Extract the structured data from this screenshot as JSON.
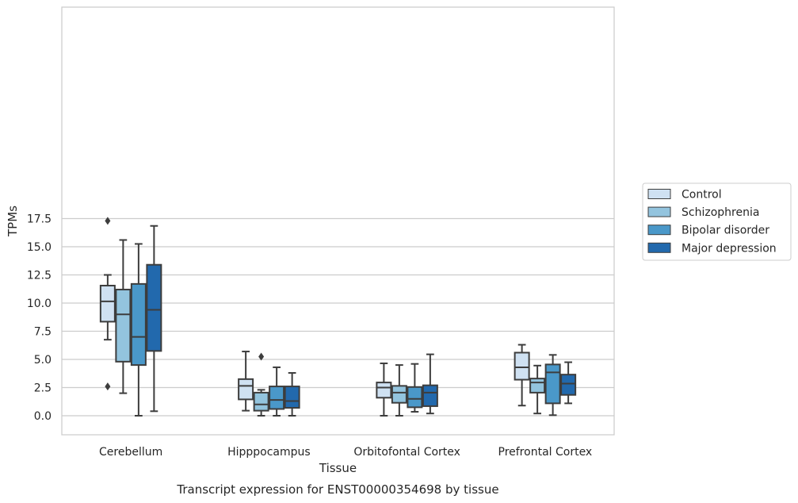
{
  "chart_data": {
    "type": "box",
    "title": "",
    "caption": "Transcript expression for ENST00000354698 by tissue",
    "xlabel": "Tissue",
    "ylabel": "TPMs",
    "ylim": [
      -0.8,
      18.2
    ],
    "yticks": [
      "0.0",
      "2.5",
      "5.0",
      "7.5",
      "10.0",
      "12.5",
      "15.0",
      "17.5"
    ],
    "ytick_values": [
      0,
      2.5,
      5,
      7.5,
      10,
      12.5,
      15,
      17.5
    ],
    "grid": "horizontal",
    "legend_position": "right",
    "categories": [
      "Cerebellum",
      "Hipppocampus",
      "Orbitofontal Cortex",
      "Prefrontal Cortex"
    ],
    "series": [
      {
        "name": "Control",
        "color": "#cfe1f2",
        "boxes": [
          {
            "q1": 8.35,
            "median": 10.15,
            "q3": 11.55,
            "whisker_low": 6.75,
            "whisker_high": 12.5,
            "outliers": [
              17.3,
              2.6
            ]
          },
          {
            "q1": 1.45,
            "median": 2.65,
            "q3": 3.25,
            "whisker_low": 0.45,
            "whisker_high": 5.7,
            "outliers": []
          },
          {
            "q1": 1.6,
            "median": 2.5,
            "q3": 2.95,
            "whisker_low": 0.0,
            "whisker_high": 4.65,
            "outliers": []
          },
          {
            "q1": 3.2,
            "median": 4.3,
            "q3": 5.6,
            "whisker_low": 0.9,
            "whisker_high": 6.3,
            "outliers": []
          }
        ]
      },
      {
        "name": "Schizophrenia",
        "color": "#93c4de",
        "boxes": [
          {
            "q1": 4.8,
            "median": 9.0,
            "q3": 11.2,
            "whisker_low": 2.0,
            "whisker_high": 15.6,
            "outliers": []
          },
          {
            "q1": 0.45,
            "median": 1.0,
            "q3": 2.05,
            "whisker_low": 0.0,
            "whisker_high": 2.3,
            "outliers": [
              5.25
            ]
          },
          {
            "q1": 1.15,
            "median": 2.05,
            "q3": 2.65,
            "whisker_low": 0.0,
            "whisker_high": 4.5,
            "outliers": []
          },
          {
            "q1": 2.05,
            "median": 2.95,
            "q3": 3.3,
            "whisker_low": 0.2,
            "whisker_high": 4.45,
            "outliers": []
          }
        ]
      },
      {
        "name": "Bipolar disorder",
        "color": "#4a98c9",
        "boxes": [
          {
            "q1": 4.5,
            "median": 7.0,
            "q3": 11.7,
            "whisker_low": 0.0,
            "whisker_high": 15.25,
            "outliers": []
          },
          {
            "q1": 0.6,
            "median": 1.4,
            "q3": 2.6,
            "whisker_low": 0.0,
            "whisker_high": 4.3,
            "outliers": []
          },
          {
            "q1": 0.75,
            "median": 1.5,
            "q3": 2.55,
            "whisker_low": 0.35,
            "whisker_high": 4.6,
            "outliers": []
          },
          {
            "q1": 1.1,
            "median": 3.85,
            "q3": 4.55,
            "whisker_low": 0.05,
            "whisker_high": 5.4,
            "outliers": []
          }
        ]
      },
      {
        "name": "Major depression",
        "color": "#2269ad",
        "boxes": [
          {
            "q1": 5.75,
            "median": 9.4,
            "q3": 13.4,
            "whisker_low": 0.4,
            "whisker_high": 16.85,
            "outliers": []
          },
          {
            "q1": 0.7,
            "median": 1.3,
            "q3": 2.6,
            "whisker_low": 0.0,
            "whisker_high": 3.8,
            "outliers": []
          },
          {
            "q1": 0.85,
            "median": 2.05,
            "q3": 2.7,
            "whisker_low": 0.2,
            "whisker_high": 5.45,
            "outliers": []
          },
          {
            "q1": 1.85,
            "median": 2.85,
            "q3": 3.65,
            "whisker_low": 1.1,
            "whisker_high": 4.75,
            "outliers": []
          }
        ]
      }
    ]
  }
}
